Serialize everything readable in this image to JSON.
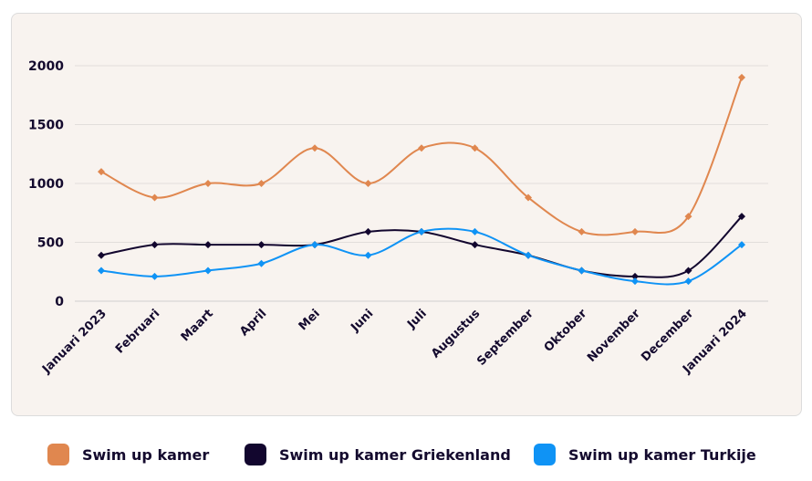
{
  "chart_data": {
    "type": "line",
    "categories": [
      "Januari 2023",
      "Februari",
      "Maart",
      "April",
      "Mei",
      "Juni",
      "Juli",
      "Augustus",
      "September",
      "Oktober",
      "November",
      "December",
      "Januari 2024"
    ],
    "series": [
      {
        "name": "Swim up kamer",
        "color": "#e0874f",
        "values": [
          1100,
          880,
          1000,
          1000,
          1300,
          1000,
          1300,
          1300,
          880,
          590,
          590,
          720,
          1900
        ]
      },
      {
        "name": "Swim up kamer Griekenland",
        "color": "#12062e",
        "values": [
          390,
          480,
          480,
          480,
          480,
          590,
          590,
          480,
          390,
          260,
          210,
          260,
          720
        ]
      },
      {
        "name": "Swim up kamer Turkije",
        "color": "#0f93f5",
        "values": [
          260,
          210,
          260,
          320,
          480,
          390,
          590,
          590,
          390,
          260,
          170,
          170,
          480
        ]
      }
    ],
    "yticks": [
      0,
      500,
      1000,
      1500,
      2000
    ],
    "ylim": [
      0,
      2000
    ],
    "grid": true,
    "legend_position": "bottom",
    "title": "",
    "xlabel": "",
    "ylabel": ""
  }
}
